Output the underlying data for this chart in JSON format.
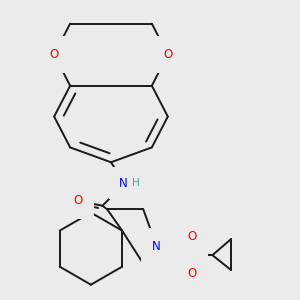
{
  "background_color": "#ebebeb",
  "bond_color": "#1a1a1a",
  "atom_colors": {
    "O": "#ff0000",
    "N": "#0000ff",
    "S": "#ccaa00",
    "H": "#20b2aa",
    "C": "#1a1a1a"
  },
  "figsize": [
    3.0,
    3.0
  ],
  "dpi": 100
}
